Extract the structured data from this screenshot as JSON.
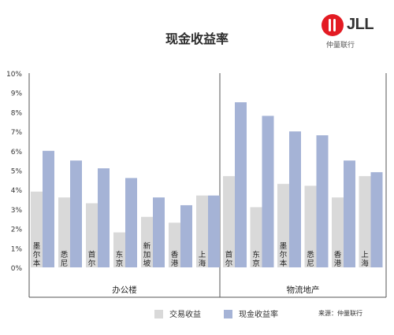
{
  "title": "现金收益率",
  "logo": {
    "text": "JLL",
    "subtitle": "仲量联行"
  },
  "source": "来源：仲量联行",
  "colors": {
    "transaction": "#d9d9d9",
    "cash": "#a5b3d6",
    "axis": "#555555"
  },
  "chart_data": {
    "type": "bar",
    "title": "现金收益率",
    "ylim": [
      0,
      10
    ],
    "yticks": [
      "0%",
      "1%",
      "2%",
      "3%",
      "4%",
      "5%",
      "6%",
      "7%",
      "8%",
      "9%",
      "10%"
    ],
    "grid": false,
    "legend_position": "bottom",
    "groups": [
      {
        "name": "办公楼",
        "categories": [
          "墨尔本",
          "悉尼",
          "首尔",
          "东京",
          "新加坡",
          "香港",
          "上海"
        ],
        "series": [
          {
            "name": "交易收益",
            "values": [
              3.9,
              3.6,
              3.3,
              1.8,
              2.6,
              2.3,
              3.7
            ]
          },
          {
            "name": "现金收益率",
            "values": [
              6.0,
              5.5,
              5.1,
              4.6,
              3.6,
              3.2,
              3.7
            ]
          }
        ]
      },
      {
        "name": "物流地产",
        "categories": [
          "首尔",
          "东京",
          "墨尔本",
          "悉尼",
          "香港",
          "上海"
        ],
        "series": [
          {
            "name": "交易收益",
            "values": [
              4.7,
              3.1,
              4.3,
              4.2,
              3.6,
              4.7
            ]
          },
          {
            "name": "现金收益率",
            "values": [
              8.5,
              7.8,
              7.0,
              6.8,
              5.5,
              4.9
            ]
          }
        ]
      }
    ],
    "legend": [
      "交易收益",
      "现金收益率"
    ]
  }
}
